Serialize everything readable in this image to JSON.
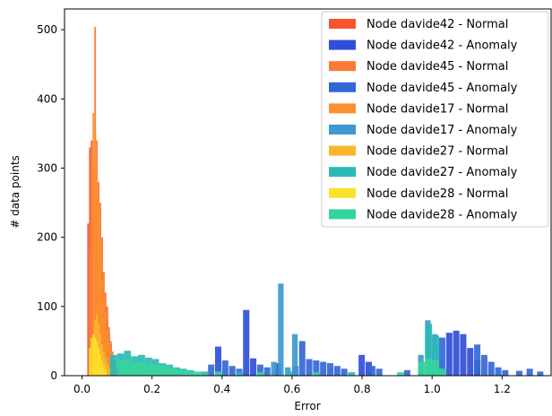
{
  "chart_data": {
    "type": "histogram",
    "title": "",
    "xlabel": "Error",
    "ylabel": "# data points",
    "xlim": [
      -0.05,
      1.34
    ],
    "ylim": [
      0,
      530
    ],
    "xticks": [
      0.0,
      0.2,
      0.4,
      0.6,
      0.8,
      1.0,
      1.2
    ],
    "xtick_labels": [
      "0.0",
      "0.2",
      "0.4",
      "0.6",
      "0.8",
      "1.0",
      "1.2"
    ],
    "yticks": [
      0,
      100,
      200,
      300,
      400,
      500
    ],
    "ytick_labels": [
      "0",
      "100",
      "200",
      "300",
      "400",
      "500"
    ],
    "grid": false,
    "legend_position": "top-right",
    "series": [
      {
        "name": "Node davide42 - Normal",
        "color": "#f8552f",
        "bin_width": 0.005,
        "bins": [
          [
            0.015,
            220
          ],
          [
            0.02,
            330
          ],
          [
            0.025,
            340
          ],
          [
            0.03,
            300
          ],
          [
            0.035,
            260
          ],
          [
            0.04,
            240
          ],
          [
            0.045,
            210
          ],
          [
            0.05,
            180
          ],
          [
            0.055,
            150
          ],
          [
            0.06,
            120
          ],
          [
            0.065,
            100
          ],
          [
            0.07,
            80
          ],
          [
            0.075,
            60
          ],
          [
            0.08,
            45
          ],
          [
            0.085,
            30
          ],
          [
            0.09,
            20
          ],
          [
            0.095,
            12
          ],
          [
            0.1,
            8
          ]
        ]
      },
      {
        "name": "Node davide42 - Anomaly",
        "color": "#2f4fd9",
        "bin_width": 0.018,
        "bins": [
          [
            0.46,
            95
          ],
          [
            0.38,
            42
          ],
          [
            0.48,
            25
          ],
          [
            0.55,
            18
          ],
          [
            0.79,
            30
          ],
          [
            0.81,
            20
          ],
          [
            1.0,
            35
          ],
          [
            1.04,
            62
          ],
          [
            1.06,
            65
          ],
          [
            1.08,
            60
          ],
          [
            1.1,
            40
          ],
          [
            1.12,
            22
          ]
        ]
      },
      {
        "name": "Node davide45 - Normal",
        "color": "#fb7a35",
        "bin_width": 0.005,
        "bins": [
          [
            0.02,
            180
          ],
          [
            0.025,
            320
          ],
          [
            0.03,
            290
          ],
          [
            0.035,
            504
          ],
          [
            0.04,
            340
          ],
          [
            0.045,
            280
          ],
          [
            0.05,
            250
          ],
          [
            0.055,
            200
          ],
          [
            0.06,
            150
          ],
          [
            0.065,
            120
          ],
          [
            0.07,
            100
          ],
          [
            0.075,
            70
          ],
          [
            0.08,
            50
          ],
          [
            0.085,
            35
          ],
          [
            0.09,
            22
          ],
          [
            0.095,
            14
          ]
        ]
      },
      {
        "name": "Node davide45 - Anomaly",
        "color": "#3468d6",
        "bin_width": 0.018,
        "bins": [
          [
            0.36,
            16
          ],
          [
            0.4,
            22
          ],
          [
            0.42,
            14
          ],
          [
            0.44,
            10
          ],
          [
            0.5,
            16
          ],
          [
            0.52,
            12
          ],
          [
            0.6,
            14
          ],
          [
            0.62,
            50
          ],
          [
            0.64,
            24
          ],
          [
            0.66,
            22
          ],
          [
            0.68,
            20
          ],
          [
            0.7,
            18
          ],
          [
            0.72,
            14
          ],
          [
            0.74,
            10
          ],
          [
            0.82,
            14
          ],
          [
            0.84,
            10
          ],
          [
            0.92,
            8
          ],
          [
            0.96,
            12
          ],
          [
            1.02,
            55
          ],
          [
            1.12,
            45
          ],
          [
            1.14,
            30
          ],
          [
            1.16,
            20
          ],
          [
            1.18,
            12
          ],
          [
            1.2,
            8
          ],
          [
            1.24,
            7
          ],
          [
            1.27,
            10
          ],
          [
            1.3,
            6
          ]
        ]
      },
      {
        "name": "Node davide17 - Normal",
        "color": "#fa902e",
        "bin_width": 0.005,
        "bins": [
          [
            0.03,
            380
          ],
          [
            0.035,
            360
          ],
          [
            0.04,
            300
          ],
          [
            0.045,
            250
          ],
          [
            0.05,
            190
          ],
          [
            0.055,
            140
          ],
          [
            0.06,
            110
          ],
          [
            0.065,
            90
          ],
          [
            0.07,
            65
          ],
          [
            0.075,
            48
          ],
          [
            0.08,
            34
          ],
          [
            0.085,
            22
          ],
          [
            0.09,
            14
          ],
          [
            0.095,
            9
          ]
        ]
      },
      {
        "name": "Node davide17 - Anomaly",
        "color": "#3d99cf",
        "bin_width": 0.016,
        "bins": [
          [
            0.56,
            133
          ],
          [
            0.6,
            60
          ],
          [
            0.54,
            20
          ],
          [
            0.58,
            12
          ],
          [
            0.98,
            80
          ],
          [
            1.0,
            60
          ],
          [
            0.96,
            30
          ]
        ]
      },
      {
        "name": "Node davide27 - Normal",
        "color": "#fbb52a",
        "bin_width": 0.005,
        "bins": [
          [
            0.03,
            60
          ],
          [
            0.035,
            80
          ],
          [
            0.04,
            90
          ],
          [
            0.045,
            75
          ],
          [
            0.05,
            60
          ],
          [
            0.055,
            45
          ],
          [
            0.06,
            35
          ],
          [
            0.065,
            25
          ],
          [
            0.07,
            18
          ],
          [
            0.075,
            12
          ],
          [
            0.08,
            8
          ]
        ]
      },
      {
        "name": "Node davide27 - Anomaly",
        "color": "#2cb9b5",
        "bin_width": 0.02,
        "bins": [
          [
            0.08,
            30
          ],
          [
            0.1,
            32
          ],
          [
            0.12,
            36
          ],
          [
            0.14,
            28
          ],
          [
            0.16,
            30
          ],
          [
            0.18,
            26
          ],
          [
            0.2,
            24
          ],
          [
            0.22,
            18
          ],
          [
            0.24,
            16
          ],
          [
            0.26,
            12
          ],
          [
            0.28,
            10
          ],
          [
            0.3,
            8
          ],
          [
            0.34,
            6
          ],
          [
            0.44,
            6
          ],
          [
            0.58,
            6
          ],
          [
            0.76,
            5
          ],
          [
            0.98,
            75
          ],
          [
            1.0,
            58
          ]
        ]
      },
      {
        "name": "Node davide28 - Normal",
        "color": "#fde22a",
        "bin_width": 0.005,
        "bins": [
          [
            0.02,
            40
          ],
          [
            0.025,
            55
          ],
          [
            0.03,
            60
          ],
          [
            0.035,
            55
          ],
          [
            0.04,
            50
          ],
          [
            0.045,
            40
          ],
          [
            0.05,
            30
          ],
          [
            0.055,
            22
          ],
          [
            0.06,
            15
          ],
          [
            0.065,
            10
          ]
        ]
      },
      {
        "name": "Node davide28 - Anomaly",
        "color": "#35d49c",
        "bin_width": 0.02,
        "bins": [
          [
            0.1,
            22
          ],
          [
            0.12,
            24
          ],
          [
            0.14,
            20
          ],
          [
            0.16,
            20
          ],
          [
            0.18,
            18
          ],
          [
            0.2,
            16
          ],
          [
            0.22,
            15
          ],
          [
            0.24,
            12
          ],
          [
            0.26,
            10
          ],
          [
            0.28,
            8
          ],
          [
            0.3,
            7
          ],
          [
            0.32,
            6
          ],
          [
            0.38,
            6
          ],
          [
            0.5,
            5
          ],
          [
            0.66,
            5
          ],
          [
            0.9,
            5
          ],
          [
            0.96,
            20
          ],
          [
            0.98,
            25
          ],
          [
            1.0,
            22
          ],
          [
            1.02,
            10
          ]
        ]
      }
    ]
  }
}
